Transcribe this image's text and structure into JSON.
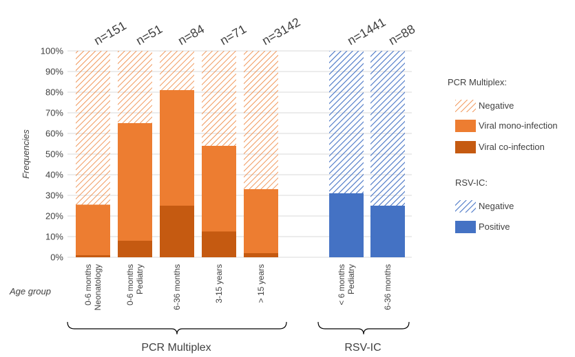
{
  "chart_data": {
    "type": "bar",
    "stacked": true,
    "ylabel": "Frequencies",
    "xlabel": "Age group",
    "ylim": [
      0,
      100
    ],
    "yticks": [
      "0%",
      "10%",
      "20%",
      "30%",
      "40%",
      "50%",
      "60%",
      "70%",
      "80%",
      "90%",
      "100%"
    ],
    "gridlines": true,
    "legend_position": "right",
    "categories": [
      {
        "line1": "0-6 months",
        "line2": "Neonatology",
        "n": "n=151",
        "group": "pcr"
      },
      {
        "line1": "0-6 months",
        "line2": "Pediatry",
        "n": "n=51",
        "group": "pcr"
      },
      {
        "line1": "6-36 months",
        "line2": "",
        "n": "n=84",
        "group": "pcr"
      },
      {
        "line1": "3-15 years",
        "line2": "",
        "n": "n=71",
        "group": "pcr"
      },
      {
        "line1": "> 15 years",
        "line2": "",
        "n": "n=3142",
        "group": "pcr"
      },
      {
        "line1": "< 6 months",
        "line2": "Pediatry",
        "n": "n=1441",
        "group": "rsv"
      },
      {
        "line1": "6-36 months",
        "line2": "",
        "n": "n=88",
        "group": "rsv"
      }
    ],
    "series": [
      {
        "name": "Viral co-infection",
        "group": "pcr",
        "values": [
          1,
          8,
          25,
          12.5,
          2,
          null,
          null
        ]
      },
      {
        "name": "Viral mono-infection",
        "group": "pcr",
        "values": [
          24.5,
          57,
          56,
          41.5,
          31,
          null,
          null
        ]
      },
      {
        "name": "Negative",
        "group": "pcr",
        "values": [
          74.5,
          35,
          19,
          46,
          67,
          null,
          null
        ]
      },
      {
        "name": "Positive",
        "group": "rsv",
        "values": [
          null,
          null,
          null,
          null,
          null,
          31,
          25
        ]
      },
      {
        "name": "Negative",
        "group": "rsv",
        "values": [
          null,
          null,
          null,
          null,
          null,
          69,
          75
        ]
      }
    ],
    "groups": [
      {
        "id": "pcr",
        "label": "PCR Multiplex"
      },
      {
        "id": "rsv",
        "label": "RSV-IC"
      }
    ],
    "legend": {
      "pcr_title": "PCR Multiplex:",
      "pcr_items": [
        "Negative",
        "Viral mono-infection",
        "Viral co-infection"
      ],
      "rsv_title": "RSV-IC:",
      "rsv_items": [
        "Negative",
        "Positive"
      ]
    },
    "colors": {
      "orange_dark": "#c55a11",
      "orange_mid": "#ed7d31",
      "orange_hatch": "#ed7d31",
      "blue_solid": "#4472c4",
      "blue_hatch": "#4472c4",
      "grid": "#d9d9d9",
      "text": "#404040"
    }
  }
}
